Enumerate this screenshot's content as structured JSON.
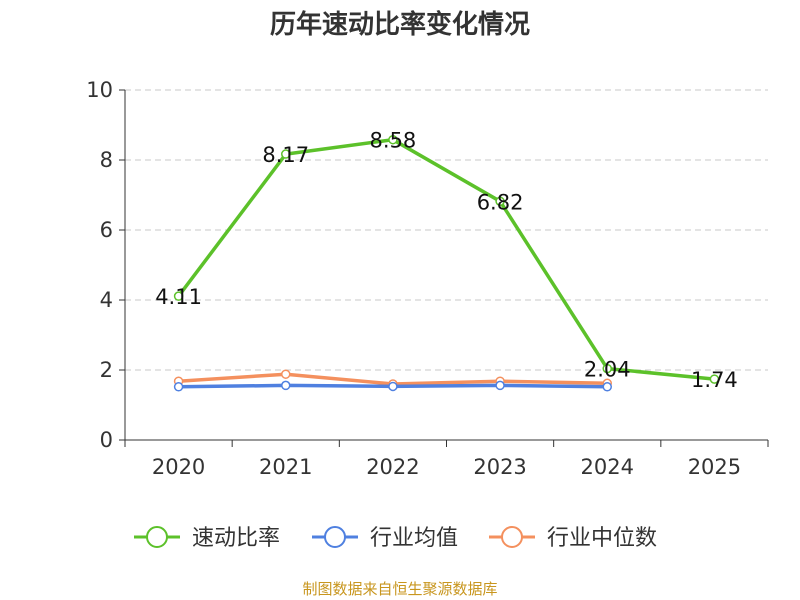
{
  "chart_data": {
    "type": "line",
    "title": "历年速动比率变化情况",
    "categories": [
      "2020",
      "2021",
      "2022",
      "2023",
      "2024",
      "2025"
    ],
    "ylim": [
      0,
      10
    ],
    "yticks": [
      0,
      2,
      4,
      6,
      8,
      10
    ],
    "grid": true,
    "legend_position": "bottom",
    "series": [
      {
        "name": "速动比率",
        "color": "#5cc12a",
        "values": [
          4.11,
          8.17,
          8.58,
          6.82,
          2.04,
          1.74
        ],
        "labels": [
          "4.11",
          "8.17",
          "8.58",
          "6.82",
          "2.04",
          "1.74"
        ]
      },
      {
        "name": "行业均值",
        "color": "#4f80e0",
        "values": [
          1.52,
          1.56,
          1.53,
          1.56,
          1.52,
          null
        ]
      },
      {
        "name": "行业中位数",
        "color": "#f4905e",
        "values": [
          1.68,
          1.88,
          1.6,
          1.68,
          1.62,
          null
        ]
      }
    ]
  },
  "source": "制图数据来自恒生聚源数据库"
}
